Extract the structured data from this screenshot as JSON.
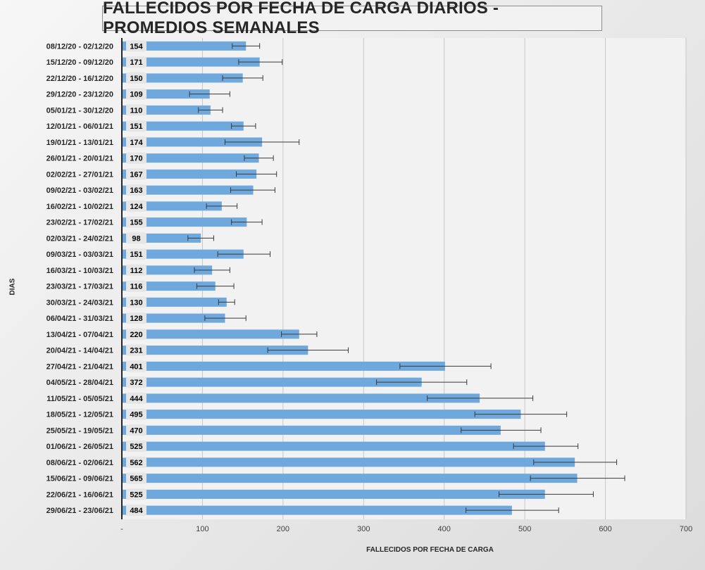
{
  "chart_data": {
    "type": "bar",
    "orientation": "horizontal",
    "title": "FALLECIDOS POR FECHA DE CARGA DIARIOS - PROMEDIOS SEMANALES",
    "xlabel": "FALLECIDOS POR FECHA DE CARGA",
    "ylabel": "DIAS",
    "xlim": [
      0,
      700
    ],
    "x_ticks": [
      "-",
      "100",
      "200",
      "300",
      "400",
      "500",
      "600",
      "700"
    ],
    "grid": "vertical",
    "bar_color": "#6fa8dc",
    "categories": [
      "08/12/20 - 02/12/20",
      "15/12/20 - 09/12/20",
      "22/12/20 - 16/12/20",
      "29/12/20 - 23/12/20",
      "05/01/21 - 30/12/20",
      "12/01/21 - 06/01/21",
      "19/01/21 - 13/01/21",
      "26/01/21 - 20/01/21",
      "02/02/21 - 27/01/21",
      "09/02/21 - 03/02/21",
      "16/02/21 - 10/02/21",
      "23/02/21 - 17/02/21",
      "02/03/21 - 24/02/21",
      "09/03/21 - 03/03/21",
      "16/03/21 - 10/03/21",
      "23/03/21 - 17/03/21",
      "30/03/21 - 24/03/21",
      "06/04/21 - 31/03/21",
      "13/04/21 - 07/04/21",
      "20/04/21 - 14/04/21",
      "27/04/21 - 21/04/21",
      "04/05/21 - 28/04/21",
      "11/05/21 - 05/05/21",
      "18/05/21 - 12/05/21",
      "25/05/21 - 19/05/21",
      "01/06/21 - 26/05/21",
      "08/06/21 - 02/06/21",
      "15/06/21 - 09/06/21",
      "22/06/21 - 16/06/21",
      "29/06/21 - 23/06/21"
    ],
    "values": [
      154,
      171,
      150,
      109,
      110,
      151,
      174,
      170,
      167,
      163,
      124,
      155,
      98,
      151,
      112,
      116,
      130,
      128,
      220,
      231,
      401,
      372,
      444,
      495,
      470,
      525,
      562,
      565,
      525,
      484
    ],
    "error_low": [
      137,
      145,
      125,
      84,
      95,
      136,
      128,
      152,
      142,
      135,
      105,
      136,
      82,
      119,
      90,
      93,
      120,
      103,
      198,
      181,
      345,
      316,
      379,
      438,
      421,
      486,
      511,
      507,
      468,
      427
    ],
    "error_high": [
      171,
      199,
      175,
      134,
      125,
      166,
      220,
      188,
      192,
      190,
      143,
      174,
      114,
      184,
      134,
      139,
      140,
      154,
      242,
      281,
      458,
      428,
      510,
      552,
      520,
      566,
      614,
      624,
      585,
      542
    ]
  }
}
